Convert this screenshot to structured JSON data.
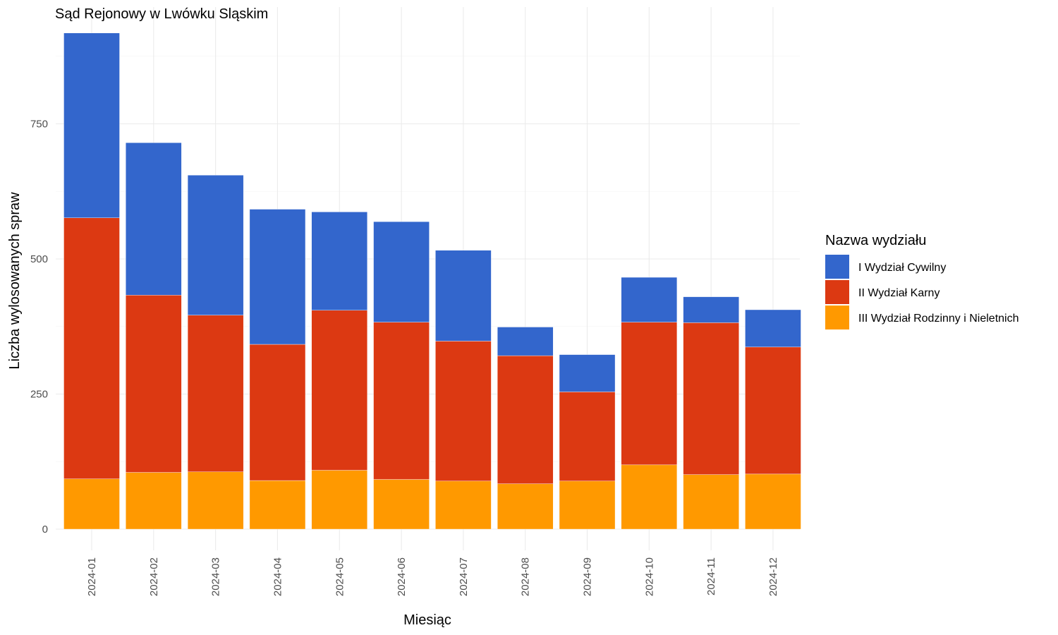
{
  "chart_data": {
    "type": "bar",
    "stacked": true,
    "title": "Sąd Rejonowy w Lwówku Sląskim",
    "xlabel": "Miesiąc",
    "ylabel": "Liczba wylosowanych spraw",
    "ylim": [
      0,
      950
    ],
    "yticks": [
      0,
      250,
      500,
      750
    ],
    "grid": true,
    "legend_position": "right",
    "legend_title": "Nazwa wydziału",
    "categories": [
      "2024-01",
      "2024-02",
      "2024-03",
      "2024-04",
      "2024-05",
      "2024-06",
      "2024-07",
      "2024-08",
      "2024-09",
      "2024-10",
      "2024-11",
      "2024-12"
    ],
    "series": [
      {
        "name": "III Wydział Rodzinny i Nieletnich",
        "color": "#FF9900",
        "values": [
          93,
          105,
          106,
          90,
          109,
          92,
          89,
          84,
          89,
          119,
          101,
          102
        ]
      },
      {
        "name": "II Wydział Karny",
        "color": "#DC3912",
        "values": [
          483,
          328,
          290,
          252,
          296,
          291,
          259,
          237,
          165,
          264,
          281,
          235
        ]
      },
      {
        "name": "I Wydział Cywilny",
        "color": "#3366CC",
        "values": [
          342,
          282,
          259,
          250,
          182,
          186,
          168,
          53,
          69,
          83,
          48,
          69
        ]
      }
    ],
    "legend_order": [
      "I Wydział Cywilny",
      "II Wydział Karny",
      "III Wydział Rodzinny i Nieletnich"
    ]
  }
}
